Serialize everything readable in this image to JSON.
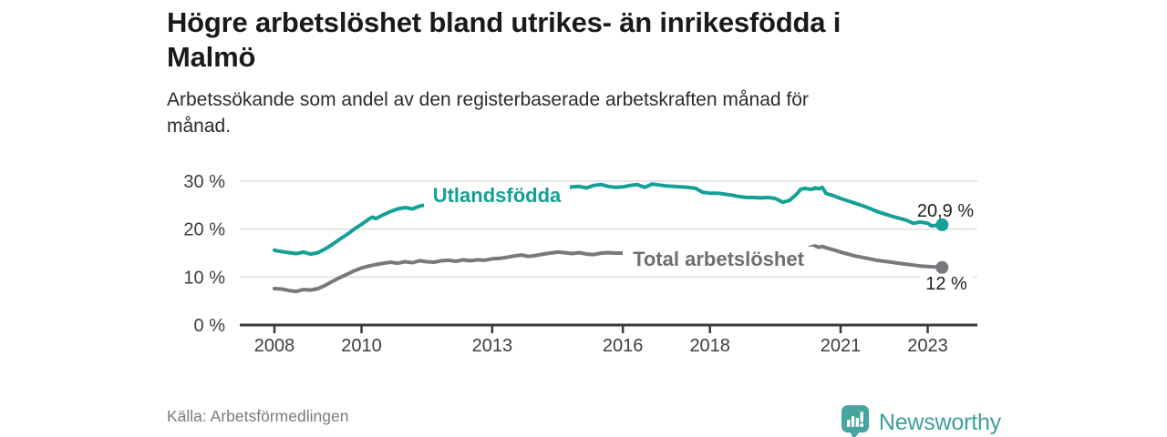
{
  "header": {
    "title_lines": [
      "Högre arbetslöshet bland utrikes- än inrikesfödda i",
      "Malmö"
    ],
    "subtitle_lines": [
      "Arbetssökande som andel av den registerbaserade arbetskraften månad för",
      "månad."
    ]
  },
  "footer": {
    "source": "Källa: Arbetsförmedlingen",
    "brand": "Newsworthy"
  },
  "colors": {
    "teal_line": "#14a096",
    "gray_line": "#78787d",
    "gray_label": "#6e6e73",
    "axis": "#3a3a3a",
    "grid": "#dcdcdc",
    "value_text": "#1f1f1f",
    "logo_badge": "#46a59f",
    "logo_text": "#3da099"
  },
  "chart_data": {
    "type": "line",
    "title": "Högre arbetslöshet bland utrikes- än inrikesfödda i Malmö",
    "subtitle": "Arbetssökande som andel av den registerbaserade arbetskraften månad för månad.",
    "xlabel": "",
    "ylabel": "",
    "grid": "horizontal",
    "legend_position": "inline-labels",
    "xlim": [
      2007.2,
      2023.9
    ],
    "ylim": [
      0,
      32
    ],
    "yticks": [
      {
        "value": 0,
        "label": "0 %"
      },
      {
        "value": 10,
        "label": "10 %"
      },
      {
        "value": 20,
        "label": "20 %"
      },
      {
        "value": 30,
        "label": "30 %"
      }
    ],
    "xticks": [
      {
        "value": 2008,
        "label": "2008"
      },
      {
        "value": 2010,
        "label": "2010"
      },
      {
        "value": 2013,
        "label": "2013"
      },
      {
        "value": 2016,
        "label": "2016"
      },
      {
        "value": 2018,
        "label": "2018"
      },
      {
        "value": 2021,
        "label": "2021"
      },
      {
        "value": 2023,
        "label": "2023"
      }
    ],
    "series": [
      {
        "name": "Utlandsfödda",
        "color": "#14a096",
        "end_label": "20,9 %",
        "end_value": 20.9,
        "points": [
          [
            2008.0,
            15.6
          ],
          [
            2008.17,
            15.3
          ],
          [
            2008.33,
            15.1
          ],
          [
            2008.5,
            14.9
          ],
          [
            2008.67,
            15.2
          ],
          [
            2008.83,
            14.8
          ],
          [
            2009.0,
            15.1
          ],
          [
            2009.17,
            15.9
          ],
          [
            2009.33,
            16.8
          ],
          [
            2009.5,
            17.9
          ],
          [
            2009.67,
            18.9
          ],
          [
            2009.83,
            20.0
          ],
          [
            2010.0,
            21.0
          ],
          [
            2010.17,
            22.1
          ],
          [
            2010.25,
            22.5
          ],
          [
            2010.33,
            22.2
          ],
          [
            2010.5,
            23.0
          ],
          [
            2010.67,
            23.7
          ],
          [
            2010.83,
            24.2
          ],
          [
            2011.0,
            24.5
          ],
          [
            2011.17,
            24.2
          ],
          [
            2011.33,
            24.8
          ],
          [
            2011.5,
            25.1
          ],
          [
            2011.67,
            25.4
          ],
          [
            2011.83,
            25.7
          ],
          [
            2012.0,
            26.0
          ],
          [
            2012.17,
            26.4
          ],
          [
            2012.33,
            25.9
          ],
          [
            2012.5,
            26.3
          ],
          [
            2012.67,
            26.7
          ],
          [
            2012.83,
            26.5
          ],
          [
            2013.0,
            26.8
          ],
          [
            2013.17,
            27.0
          ],
          [
            2013.33,
            27.3
          ],
          [
            2013.5,
            27.5
          ],
          [
            2013.67,
            27.3
          ],
          [
            2013.83,
            27.6
          ],
          [
            2014.0,
            27.9
          ],
          [
            2014.17,
            28.2
          ],
          [
            2014.33,
            28.5
          ],
          [
            2014.5,
            28.1
          ],
          [
            2014.67,
            28.5
          ],
          [
            2014.83,
            28.8
          ],
          [
            2015.0,
            28.9
          ],
          [
            2015.17,
            28.6
          ],
          [
            2015.33,
            29.1
          ],
          [
            2015.5,
            29.3
          ],
          [
            2015.67,
            28.9
          ],
          [
            2015.83,
            28.7
          ],
          [
            2016.0,
            28.8
          ],
          [
            2016.17,
            29.1
          ],
          [
            2016.33,
            29.3
          ],
          [
            2016.5,
            28.7
          ],
          [
            2016.67,
            29.4
          ],
          [
            2016.83,
            29.2
          ],
          [
            2017.0,
            29.0
          ],
          [
            2017.17,
            28.9
          ],
          [
            2017.33,
            28.8
          ],
          [
            2017.5,
            28.7
          ],
          [
            2017.67,
            28.5
          ],
          [
            2017.83,
            27.7
          ],
          [
            2018.0,
            27.5
          ],
          [
            2018.17,
            27.5
          ],
          [
            2018.33,
            27.3
          ],
          [
            2018.5,
            27.1
          ],
          [
            2018.67,
            26.8
          ],
          [
            2018.83,
            26.6
          ],
          [
            2019.0,
            26.6
          ],
          [
            2019.17,
            26.5
          ],
          [
            2019.33,
            26.6
          ],
          [
            2019.5,
            26.4
          ],
          [
            2019.67,
            25.6
          ],
          [
            2019.83,
            26.0
          ],
          [
            2020.0,
            27.4
          ],
          [
            2020.08,
            28.3
          ],
          [
            2020.17,
            28.5
          ],
          [
            2020.33,
            28.3
          ],
          [
            2020.42,
            28.6
          ],
          [
            2020.5,
            28.4
          ],
          [
            2020.58,
            28.7
          ],
          [
            2020.67,
            27.4
          ],
          [
            2020.83,
            27.0
          ],
          [
            2021.0,
            26.4
          ],
          [
            2021.17,
            25.9
          ],
          [
            2021.33,
            25.4
          ],
          [
            2021.5,
            24.9
          ],
          [
            2021.67,
            24.3
          ],
          [
            2021.83,
            23.7
          ],
          [
            2022.0,
            23.2
          ],
          [
            2022.17,
            22.7
          ],
          [
            2022.33,
            22.3
          ],
          [
            2022.5,
            21.9
          ],
          [
            2022.67,
            21.2
          ],
          [
            2022.83,
            21.5
          ],
          [
            2023.0,
            21.2
          ],
          [
            2023.08,
            20.7
          ],
          [
            2023.25,
            20.8
          ],
          [
            2023.33,
            20.9
          ]
        ]
      },
      {
        "name": "Total arbetslöshet",
        "color": "#78787d",
        "end_label": "12 %",
        "end_value": 12.0,
        "points": [
          [
            2008.0,
            7.6
          ],
          [
            2008.17,
            7.5
          ],
          [
            2008.33,
            7.2
          ],
          [
            2008.5,
            7.0
          ],
          [
            2008.67,
            7.4
          ],
          [
            2008.83,
            7.3
          ],
          [
            2009.0,
            7.6
          ],
          [
            2009.17,
            8.3
          ],
          [
            2009.33,
            9.1
          ],
          [
            2009.5,
            9.9
          ],
          [
            2009.67,
            10.6
          ],
          [
            2009.83,
            11.3
          ],
          [
            2010.0,
            11.9
          ],
          [
            2010.17,
            12.3
          ],
          [
            2010.33,
            12.6
          ],
          [
            2010.5,
            12.9
          ],
          [
            2010.67,
            13.1
          ],
          [
            2010.83,
            12.9
          ],
          [
            2011.0,
            13.2
          ],
          [
            2011.17,
            13.0
          ],
          [
            2011.33,
            13.4
          ],
          [
            2011.5,
            13.2
          ],
          [
            2011.67,
            13.1
          ],
          [
            2011.83,
            13.4
          ],
          [
            2012.0,
            13.5
          ],
          [
            2012.17,
            13.3
          ],
          [
            2012.33,
            13.6
          ],
          [
            2012.5,
            13.4
          ],
          [
            2012.67,
            13.6
          ],
          [
            2012.83,
            13.5
          ],
          [
            2013.0,
            13.8
          ],
          [
            2013.17,
            13.9
          ],
          [
            2013.33,
            14.1
          ],
          [
            2013.5,
            14.4
          ],
          [
            2013.67,
            14.6
          ],
          [
            2013.83,
            14.3
          ],
          [
            2014.0,
            14.5
          ],
          [
            2014.17,
            14.8
          ],
          [
            2014.33,
            15.0
          ],
          [
            2014.5,
            15.2
          ],
          [
            2014.67,
            15.1
          ],
          [
            2014.83,
            14.9
          ],
          [
            2015.0,
            15.1
          ],
          [
            2015.17,
            14.8
          ],
          [
            2015.33,
            14.7
          ],
          [
            2015.5,
            15.0
          ],
          [
            2015.67,
            15.1
          ],
          [
            2015.83,
            15.0
          ],
          [
            2016.0,
            15.0
          ],
          [
            2016.25,
            14.9
          ],
          [
            2016.5,
            15.1
          ],
          [
            2016.75,
            15.0
          ],
          [
            2017.0,
            15.0
          ],
          [
            2017.25,
            15.1
          ],
          [
            2017.5,
            15.0
          ],
          [
            2017.75,
            14.8
          ],
          [
            2018.0,
            14.7
          ],
          [
            2018.25,
            14.6
          ],
          [
            2018.5,
            14.4
          ],
          [
            2018.75,
            14.2
          ],
          [
            2019.0,
            14.1
          ],
          [
            2019.25,
            14.0
          ],
          [
            2019.5,
            13.8
          ],
          [
            2019.67,
            13.5
          ],
          [
            2019.83,
            13.7
          ],
          [
            2020.0,
            14.3
          ],
          [
            2020.17,
            15.6
          ],
          [
            2020.33,
            16.3
          ],
          [
            2020.42,
            16.5
          ],
          [
            2020.5,
            16.2
          ],
          [
            2020.58,
            16.4
          ],
          [
            2020.67,
            16.1
          ],
          [
            2020.83,
            15.7
          ],
          [
            2021.0,
            15.2
          ],
          [
            2021.17,
            14.8
          ],
          [
            2021.33,
            14.4
          ],
          [
            2021.5,
            14.1
          ],
          [
            2021.67,
            13.8
          ],
          [
            2021.83,
            13.5
          ],
          [
            2022.0,
            13.3
          ],
          [
            2022.17,
            13.1
          ],
          [
            2022.33,
            12.9
          ],
          [
            2022.5,
            12.7
          ],
          [
            2022.67,
            12.5
          ],
          [
            2022.83,
            12.3
          ],
          [
            2023.0,
            12.2
          ],
          [
            2023.17,
            12.1
          ],
          [
            2023.33,
            12.0
          ]
        ]
      }
    ]
  }
}
